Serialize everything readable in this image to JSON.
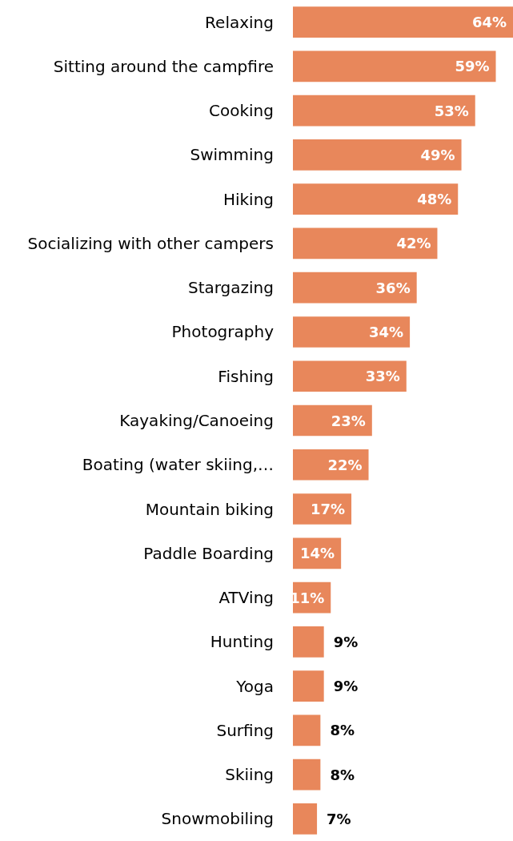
{
  "chart_data": {
    "type": "bar",
    "orientation": "horizontal",
    "categories": [
      "Relaxing",
      "Sitting around the campfire",
      "Cooking",
      "Swimming",
      "Hiking",
      "Socializing with other campers",
      "Stargazing",
      "Photography",
      "Fishing",
      "Kayaking/Canoeing",
      "Boating (water skiing,…",
      "Mountain biking",
      "Paddle Boarding",
      "ATVing",
      "Hunting",
      "Yoga",
      "Surfing",
      "Skiing",
      "Snowmobiling"
    ],
    "values": [
      64,
      59,
      53,
      49,
      48,
      42,
      36,
      34,
      33,
      23,
      22,
      17,
      14,
      11,
      9,
      9,
      8,
      8,
      7
    ],
    "value_labels": [
      "64%",
      "59%",
      "53%",
      "49%",
      "48%",
      "42%",
      "36%",
      "34%",
      "33%",
      "23%",
      "22%",
      "17%",
      "14%",
      "11%",
      "9%",
      "9%",
      "8%",
      "8%",
      "7%"
    ],
    "color": "#e8875b"
  }
}
